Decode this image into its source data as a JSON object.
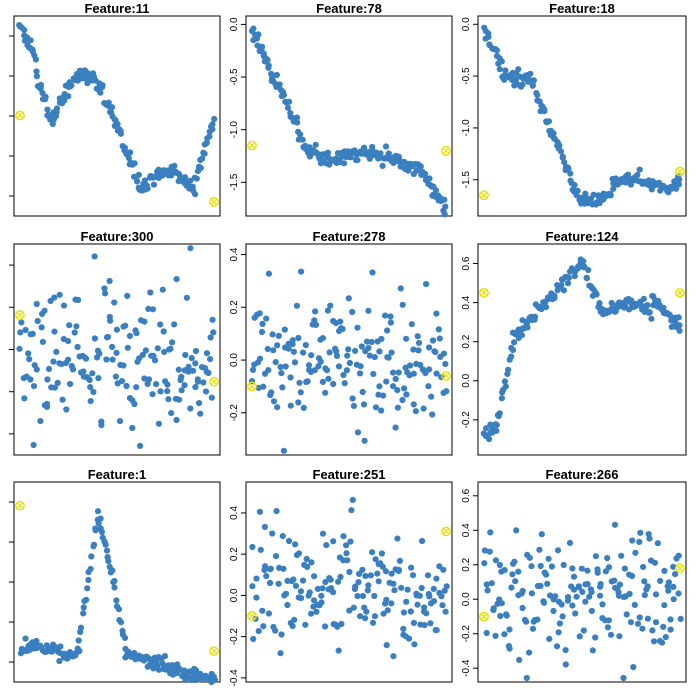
{
  "colors": {
    "point": "#3a7fbf",
    "marker": "#e8e000"
  },
  "chart_data": [
    {
      "type": "scatter",
      "title": "Feature:11",
      "ylim": [
        -1.75,
        0.1
      ],
      "yticks": [],
      "marker_left": -0.82,
      "marker_right": -1.62,
      "seed": 11,
      "shape": "f11"
    },
    {
      "type": "scatter",
      "title": "Feature:78",
      "ylim": [
        -1.82,
        0.08
      ],
      "yticks": [
        "0.0",
        "-0.5",
        "-1.0",
        "-1.5"
      ],
      "yvals": [
        0,
        -0.5,
        -1.0,
        -1.5
      ],
      "marker_left": -1.15,
      "marker_right": -1.2,
      "seed": 78,
      "shape": "f78"
    },
    {
      "type": "scatter",
      "title": "Feature:18",
      "ylim": [
        -1.85,
        0.08
      ],
      "yticks": [
        "0.0",
        "-0.5",
        "-1.0",
        "-1.5"
      ],
      "yvals": [
        0,
        -0.5,
        -1.0,
        -1.5
      ],
      "marker_left": -1.65,
      "marker_right": -1.42,
      "seed": 18,
      "shape": "f18"
    },
    {
      "type": "scatter",
      "title": "Feature:300",
      "ylim": [
        -0.45,
        0.5
      ],
      "yticks": [],
      "marker_left": 0.18,
      "marker_right": -0.12,
      "seed": 300,
      "shape": "noise"
    },
    {
      "type": "scatter",
      "title": "Feature:278",
      "ylim": [
        -0.36,
        0.44
      ],
      "yticks": [
        "0.4",
        "0.2",
        "0.0",
        "-0.2"
      ],
      "yvals": [
        0.4,
        0.2,
        0.0,
        -0.2
      ],
      "marker_left": -0.1,
      "marker_right": -0.06,
      "seed": 278,
      "shape": "noise"
    },
    {
      "type": "scatter",
      "title": "Feature:124",
      "ylim": [
        -0.38,
        0.7
      ],
      "yticks": [
        "0.6",
        "0.4",
        "0.2",
        "0.0",
        "-0.2"
      ],
      "yvals": [
        0.6,
        0.4,
        0.2,
        0.0,
        -0.2
      ],
      "marker_left": 0.45,
      "marker_right": 0.45,
      "seed": 124,
      "shape": "f124"
    },
    {
      "type": "scatter",
      "title": "Feature:1",
      "ylim": [
        -0.15,
        0.95
      ],
      "yticks": [],
      "marker_left": 0.82,
      "marker_right": 0.02,
      "seed": 1,
      "shape": "f1"
    },
    {
      "type": "scatter",
      "title": "Feature:251",
      "ylim": [
        -0.42,
        0.55
      ],
      "yticks": [
        "0.4",
        "0.2",
        "0.0",
        "-0.2",
        "-0.4"
      ],
      "yvals": [
        0.4,
        0.2,
        0.0,
        -0.2,
        -0.4
      ],
      "marker_left": -0.1,
      "marker_right": 0.31,
      "seed": 251,
      "shape": "noise"
    },
    {
      "type": "scatter",
      "title": "Feature:266",
      "ylim": [
        -0.48,
        0.68
      ],
      "yticks": [
        "0.6",
        "0.4",
        "0.2",
        "0.0",
        "-0.2",
        "-0.4"
      ],
      "yvals": [
        0.6,
        0.4,
        0.2,
        0.0,
        -0.2,
        -0.4
      ],
      "marker_left": -0.1,
      "marker_right": 0.18,
      "seed": 266,
      "shape": "noise"
    }
  ]
}
